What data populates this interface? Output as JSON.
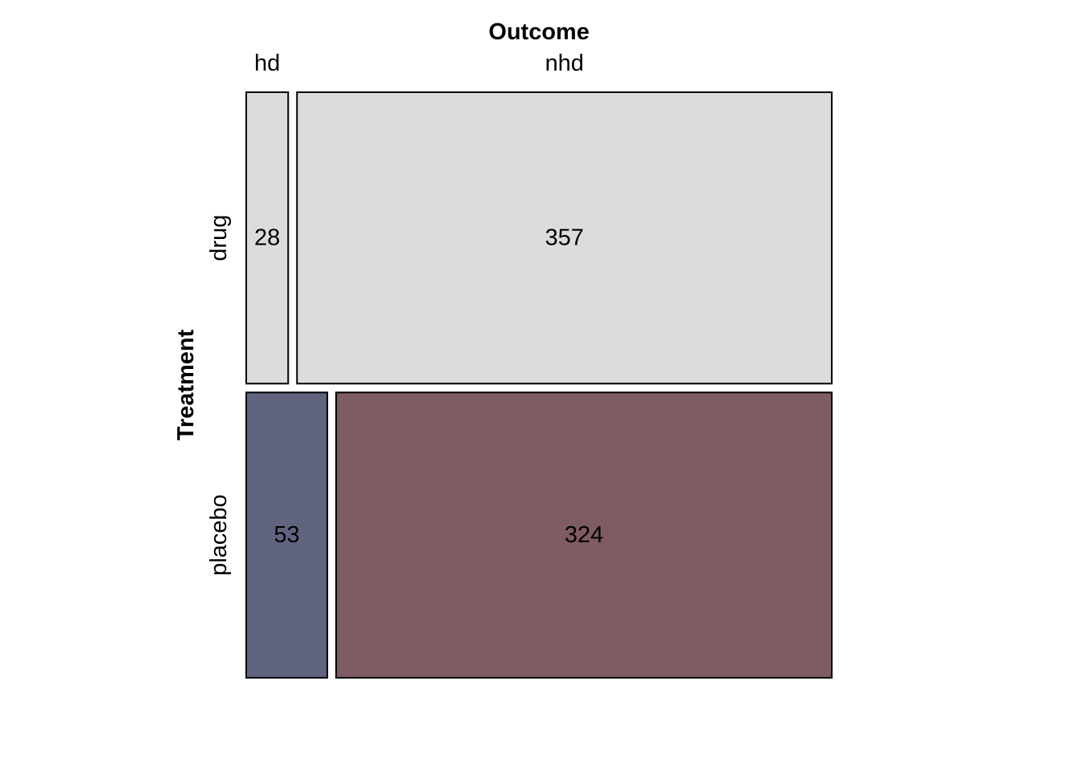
{
  "chart_data": {
    "type": "mosaic",
    "col_variable": "Outcome",
    "row_variable": "Treatment",
    "col_levels": [
      "hd",
      "nhd"
    ],
    "row_levels": [
      "drug",
      "placebo"
    ],
    "counts": [
      [
        28,
        357
      ],
      [
        53,
        324
      ]
    ],
    "cell_colors": [
      [
        "#dcdcdc",
        "#dcdcdc"
      ],
      [
        "#61647e",
        "#7f5b63"
      ]
    ],
    "border_color": "#000000",
    "background": "#ffffff"
  }
}
